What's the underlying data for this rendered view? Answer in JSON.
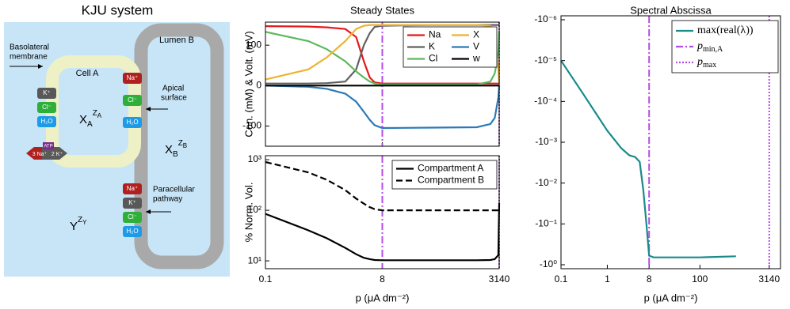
{
  "diagram": {
    "title": "KJU system",
    "lumen": "Lumen B",
    "basolateral": [
      "Basolateral",
      "membrane"
    ],
    "cell": "Cell A",
    "apical": [
      "Apical",
      "surface"
    ],
    "paracellular": [
      "Paracellular",
      "pathway"
    ],
    "cell_a_chips": [
      "K⁺",
      "Cl⁻",
      "H₂O"
    ],
    "apical_chips": [
      "Na⁺",
      "Cl⁻",
      "H₂O"
    ],
    "paracellular_chips": [
      "Na⁺",
      "K⁺",
      "Cl⁻",
      "H₂O"
    ],
    "pump": {
      "atp": "ATP",
      "na": "3 Na⁺",
      "k": "2 K⁺"
    },
    "var_a": {
      "base": "X",
      "sub": "A",
      "sup": "Z",
      "supsub": "A"
    },
    "var_b": {
      "base": "X",
      "sub": "B",
      "sup": "Z",
      "supsub": "B"
    },
    "var_y": {
      "base": "Y",
      "sup": "Z",
      "supsub": "Y"
    }
  },
  "chart_data": [
    {
      "type": "line",
      "title": "Steady States",
      "ylabel": "Con. (mM) & Volt. (mV)",
      "xscale": "log-piecewise",
      "yscale": "linear",
      "xticklabels_visible": false,
      "x": [
        0.1,
        0.5,
        1,
        2,
        3,
        4,
        5,
        6,
        8,
        100,
        1000,
        2000,
        2500,
        3000,
        3140
      ],
      "xlim": [
        0.1,
        3140
      ],
      "xticks": [
        0.1,
        8,
        3140
      ],
      "ylim": [
        -150,
        157
      ],
      "yticks": [
        -100,
        0,
        100
      ],
      "legend": "upper right",
      "legend_columns": 2,
      "series": [
        {
          "name": "Na",
          "color": "#e41a1c",
          "values": [
            147,
            146,
            144,
            140,
            120,
            60,
            20,
            8,
            5,
            5,
            5,
            5,
            5,
            5,
            5
          ]
        },
        {
          "name": "K",
          "color": "#606060",
          "values": [
            5,
            5,
            6,
            10,
            40,
            100,
            130,
            145,
            148,
            150,
            150,
            150,
            150,
            150,
            150
          ]
        },
        {
          "name": "Cl",
          "color": "#5cb85c",
          "values": [
            133,
            110,
            90,
            60,
            35,
            20,
            10,
            5,
            3,
            3,
            3,
            10,
            30,
            80,
            135
          ]
        },
        {
          "name": "X",
          "color": "#eeb330",
          "values": [
            15,
            40,
            70,
            110,
            140,
            148,
            150,
            150,
            150,
            150,
            150,
            148,
            120,
            40,
            5
          ]
        },
        {
          "name": "V",
          "color": "#2a7ab8",
          "values": [
            0,
            -3,
            -8,
            -20,
            -40,
            -65,
            -85,
            -98,
            -105,
            -104,
            -103,
            -95,
            -80,
            -30,
            0
          ]
        },
        {
          "name": "w",
          "color": "#000000",
          "values": [
            0,
            0,
            0,
            0,
            0,
            0,
            0,
            0,
            0,
            0,
            0,
            0,
            0,
            0,
            0
          ]
        }
      ],
      "vlines": [
        {
          "x": 8,
          "color": "#b44ce8",
          "style": "dashdot"
        },
        {
          "x": 3140,
          "color": "#b44ce8",
          "style": "dotted"
        }
      ]
    },
    {
      "type": "line",
      "ylabel": "% Norm. Vol.",
      "xlabel": "p  (μA dm⁻²)",
      "xscale": "log-piecewise",
      "yscale": "log",
      "x": [
        0.1,
        0.5,
        1,
        2,
        3,
        4,
        5,
        6,
        8,
        100,
        1000,
        2000,
        2500,
        3000,
        3140
      ],
      "xlim": [
        0.1,
        3140
      ],
      "xticks": [
        0.1,
        8,
        3140
      ],
      "ylim": [
        7,
        1200
      ],
      "yticks": [
        {
          "value": 10,
          "label": "10¹"
        },
        {
          "value": 100,
          "label": "10²"
        },
        {
          "value": 1000,
          "label": "10³"
        }
      ],
      "legend": "upper right",
      "series": [
        {
          "name": "Compartment A",
          "color": "#000000",
          "style": "solid",
          "values": [
            85,
            40,
            28,
            18,
            13.5,
            11.5,
            10.8,
            10.4,
            10.3,
            10.3,
            10.3,
            10.4,
            10.8,
            13,
            140
          ]
        },
        {
          "name": "Compartment B",
          "color": "#000000",
          "style": "dashed",
          "values": [
            900,
            560,
            400,
            250,
            170,
            135,
            115,
            105,
            100,
            100,
            100,
            100,
            100,
            100,
            100
          ]
        }
      ],
      "vlines": [
        {
          "x": 8,
          "color": "#b44ce8",
          "style": "dashdot"
        },
        {
          "x": 3140,
          "color": "#b44ce8",
          "style": "dotted"
        }
      ]
    },
    {
      "type": "line",
      "title": "Spectral Abscissa",
      "xlabel": "p  (μA dm⁻²)",
      "xscale": "log",
      "yscale": "log",
      "x": [
        0.1,
        0.3,
        1,
        2,
        3,
        4,
        5,
        6,
        7,
        8,
        10,
        100,
        600
      ],
      "xlim": [
        0.1,
        5500
      ],
      "xticks": [
        0.1,
        1,
        8,
        100,
        3140
      ],
      "ylim": [
        -1.25,
        -8e-07
      ],
      "yticks": [
        {
          "value": -1e-06,
          "label": "-10⁻⁶"
        },
        {
          "value": -1e-05,
          "label": "-10⁻⁵"
        },
        {
          "value": -0.0001,
          "label": "-10⁻⁴"
        },
        {
          "value": -0.001,
          "label": "-10⁻³"
        },
        {
          "value": -0.01,
          "label": "-10⁻²"
        },
        {
          "value": -0.1,
          "label": "-10⁻¹"
        },
        {
          "value": -1,
          "label": "-10⁰"
        }
      ],
      "legend": "upper right",
      "series": [
        {
          "name": "max(real(λ))",
          "color": "#1a8a8a",
          "values": [
            -1e-05,
            -6.5e-05,
            -0.00052,
            -0.0014,
            -0.0021,
            -0.0023,
            -0.003,
            -0.015,
            -0.1,
            -0.6,
            -0.66,
            -0.66,
            -0.62
          ]
        }
      ],
      "vlines": [
        {
          "x": 8,
          "color": "#b44ce8",
          "style": "dashdot",
          "label": "p",
          "label_sub": "min,A"
        },
        {
          "x": 3140,
          "color": "#b44ce8",
          "style": "dotted",
          "label": "p",
          "label_sub": "max"
        }
      ]
    }
  ]
}
